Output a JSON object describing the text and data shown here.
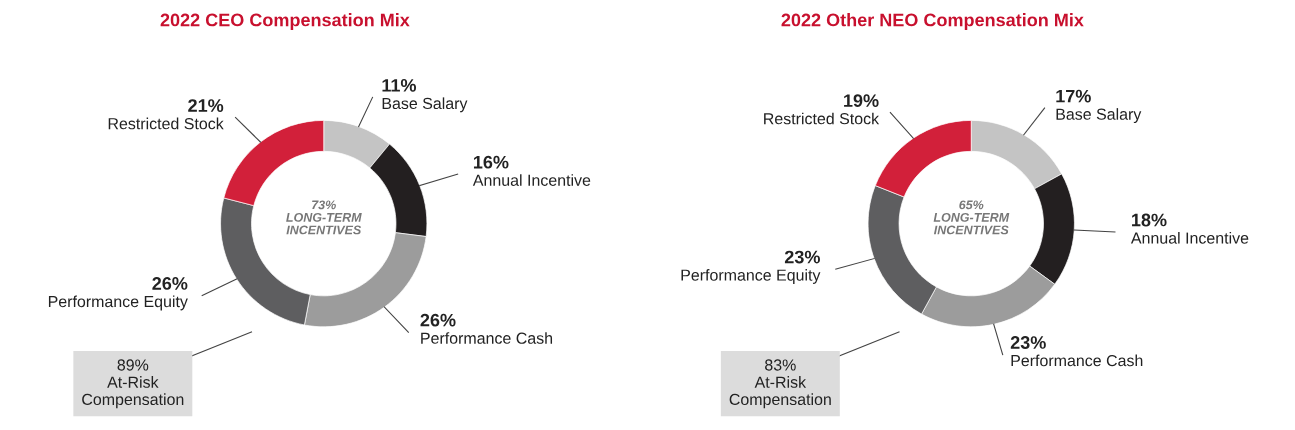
{
  "chart_data": [
    {
      "type": "donut",
      "title": "2022 CEO Compensation Mix",
      "categories": [
        "Base Salary",
        "Annual Incentive",
        "Performance Cash",
        "Performance Equity",
        "Restricted Stock"
      ],
      "values": [
        11,
        16,
        26,
        26,
        21
      ],
      "value_labels": [
        "11%",
        "16%",
        "26%",
        "26%",
        "21%"
      ],
      "colors": [
        "#c4c4c4",
        "#231f20",
        "#9c9c9c",
        "#5e5e60",
        "#d2203a"
      ],
      "annotations": [
        "73%\nLONG-TERM\nINCENTIVES",
        "89%\nAt-Risk\nCompensation"
      ]
    },
    {
      "type": "donut",
      "title": "2022 Other NEO Compensation Mix",
      "categories": [
        "Base Salary",
        "Annual Incentive",
        "Performance Cash",
        "Performance Equity",
        "Restricted Stock"
      ],
      "values": [
        17,
        18,
        23,
        23,
        19
      ],
      "value_labels": [
        "17%",
        "18%",
        "23%",
        "23%",
        "19%"
      ],
      "colors": [
        "#c4c4c4",
        "#231f20",
        "#9c9c9c",
        "#5e5e60",
        "#d2203a"
      ],
      "annotations": [
        "65%\nLONG-TERM\nINCENTIVES",
        "83%\nAt-Risk\nCompensation"
      ]
    }
  ]
}
